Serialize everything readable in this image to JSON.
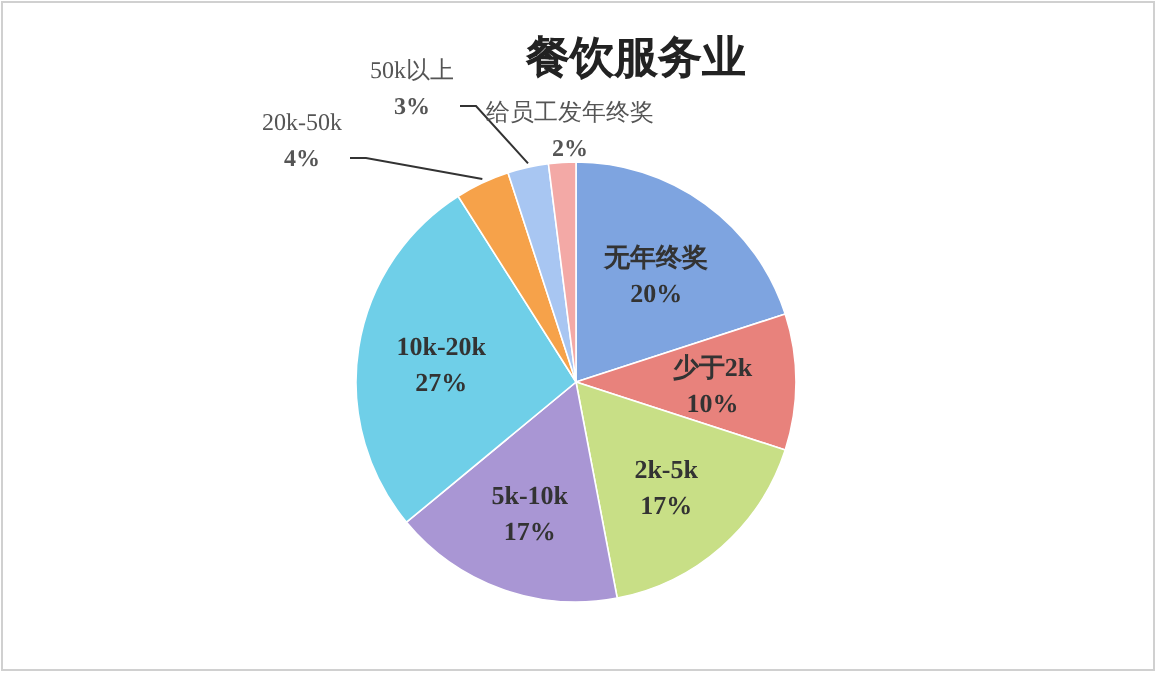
{
  "chart_data": {
    "type": "pie",
    "title": "餐饮服务业",
    "categories": [
      "无年终奖",
      "少于2k",
      "2k-5k",
      "5k-10k",
      "10k-20k",
      "20k-50k",
      "50k以上",
      "给员工发年终奖"
    ],
    "values": [
      20,
      10,
      17,
      17,
      27,
      4,
      3,
      2
    ],
    "colors": [
      "#7ea4e0",
      "#e8827c",
      "#c8df86",
      "#a996d4",
      "#6fcfe8",
      "#f6a24a",
      "#a8c6f2",
      "#f3a9a6"
    ],
    "value_labels": [
      "20%",
      "10%",
      "17%",
      "17%",
      "27%",
      "4%",
      "3%",
      "2%"
    ]
  }
}
